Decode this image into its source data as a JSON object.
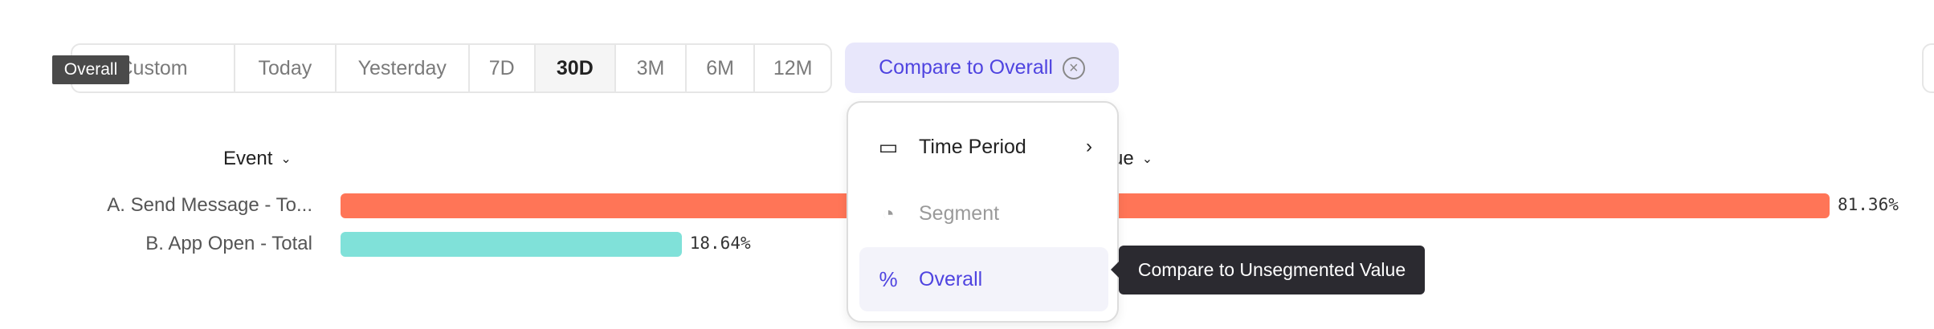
{
  "date_range": {
    "items": [
      "Custom",
      "Today",
      "Yesterday",
      "7D",
      "30D",
      "3M",
      "6M",
      "12M"
    ],
    "selected": "30D"
  },
  "compare": {
    "label": "Compare to Overall",
    "clear_icon": "circle-x-icon"
  },
  "tooltip_small": "Overall",
  "table": {
    "headers": {
      "event": "Event",
      "value": "ue"
    },
    "rows": [
      {
        "label": "A. Send Message - To...",
        "value": "81.36%",
        "pct": 81.36,
        "color": "#ff7557"
      },
      {
        "label": "B. App Open - Total",
        "value": "18.64%",
        "pct": 18.64,
        "color": "#80e1d9"
      }
    ]
  },
  "menu": {
    "items": [
      {
        "label": "Time Period",
        "icon": "calendar-icon",
        "has_submenu": true
      },
      {
        "label": "Segment",
        "icon": "segment-icon",
        "disabled": true
      },
      {
        "label": "Overall",
        "icon": "percent-icon",
        "selected": true
      }
    ]
  },
  "tooltip_big": "Compare to Unsegmented Value",
  "colors": {
    "accent": "#4f44e0",
    "accent_bg": "#e8e7fb"
  }
}
